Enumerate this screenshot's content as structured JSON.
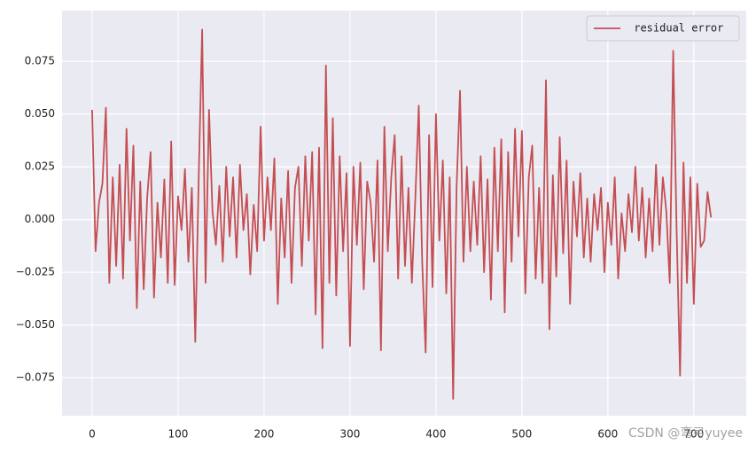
{
  "chart_data": {
    "type": "line",
    "x": [
      0,
      4,
      8,
      12,
      16,
      20,
      24,
      28,
      32,
      36,
      40,
      44,
      48,
      52,
      56,
      60,
      64,
      68,
      72,
      76,
      80,
      84,
      88,
      92,
      96,
      100,
      104,
      108,
      112,
      116,
      120,
      124,
      128,
      132,
      136,
      140,
      144,
      148,
      152,
      156,
      160,
      164,
      168,
      172,
      176,
      180,
      184,
      188,
      192,
      196,
      200,
      204,
      208,
      212,
      216,
      220,
      224,
      228,
      232,
      236,
      240,
      244,
      248,
      252,
      256,
      260,
      264,
      268,
      272,
      276,
      280,
      284,
      288,
      292,
      296,
      300,
      304,
      308,
      312,
      316,
      320,
      324,
      328,
      332,
      336,
      340,
      344,
      348,
      352,
      356,
      360,
      364,
      368,
      372,
      376,
      380,
      384,
      388,
      392,
      396,
      400,
      404,
      408,
      412,
      416,
      420,
      424,
      428,
      432,
      436,
      440,
      444,
      448,
      452,
      456,
      460,
      464,
      468,
      472,
      476,
      480,
      484,
      488,
      492,
      496,
      500,
      504,
      508,
      512,
      516,
      520,
      524,
      528,
      532,
      536,
      540,
      544,
      548,
      552,
      556,
      560,
      564,
      568,
      572,
      576,
      580,
      584,
      588,
      592,
      596,
      600,
      604,
      608,
      612,
      616,
      620,
      624,
      628,
      632,
      636,
      640,
      644,
      648,
      652,
      656,
      660,
      664,
      668,
      672,
      676,
      680,
      684,
      688,
      692,
      696,
      700,
      704,
      708,
      712,
      716,
      720
    ],
    "series": [
      {
        "name": " residual error",
        "color": "#c44e52",
        "values": [
          0.052,
          -0.015,
          0.008,
          0.017,
          0.053,
          -0.03,
          0.02,
          -0.022,
          0.026,
          -0.028,
          0.043,
          -0.01,
          0.035,
          -0.042,
          0.018,
          -0.033,
          0.01,
          0.032,
          -0.037,
          0.008,
          -0.018,
          0.019,
          -0.03,
          0.037,
          -0.031,
          0.011,
          -0.005,
          0.024,
          -0.02,
          0.015,
          -0.058,
          0.02,
          0.09,
          -0.03,
          0.052,
          0.004,
          -0.012,
          0.016,
          -0.02,
          0.025,
          -0.008,
          0.02,
          -0.018,
          0.026,
          -0.005,
          0.012,
          -0.026,
          0.007,
          -0.015,
          0.044,
          -0.01,
          0.02,
          -0.005,
          0.029,
          -0.04,
          0.01,
          -0.018,
          0.023,
          -0.03,
          0.015,
          0.025,
          -0.022,
          0.03,
          -0.01,
          0.032,
          -0.045,
          0.034,
          -0.061,
          0.073,
          -0.03,
          0.048,
          -0.036,
          0.03,
          -0.015,
          0.022,
          -0.06,
          0.025,
          -0.012,
          0.027,
          -0.033,
          0.018,
          0.008,
          -0.02,
          0.028,
          -0.062,
          0.044,
          -0.015,
          0.02,
          0.04,
          -0.028,
          0.03,
          -0.022,
          0.015,
          -0.03,
          0.01,
          0.054,
          -0.02,
          -0.063,
          0.04,
          -0.032,
          0.05,
          -0.01,
          0.028,
          -0.035,
          0.02,
          -0.085,
          0.015,
          0.061,
          -0.02,
          0.025,
          -0.015,
          0.018,
          -0.012,
          0.03,
          -0.025,
          0.019,
          -0.038,
          0.034,
          -0.015,
          0.038,
          -0.044,
          0.032,
          -0.02,
          0.043,
          -0.008,
          0.042,
          -0.035,
          0.02,
          0.035,
          -0.028,
          0.015,
          -0.03,
          0.066,
          -0.052,
          0.021,
          -0.027,
          0.039,
          -0.016,
          0.028,
          -0.04,
          0.018,
          -0.008,
          0.022,
          -0.018,
          0.01,
          -0.02,
          0.012,
          -0.005,
          0.015,
          -0.025,
          0.008,
          -0.012,
          0.02,
          -0.028,
          0.003,
          -0.015,
          0.012,
          -0.006,
          0.025,
          -0.01,
          0.015,
          -0.018,
          0.01,
          -0.015,
          0.026,
          -0.012,
          0.02,
          0.004,
          -0.03,
          0.08,
          -0.005,
          -0.074,
          0.027,
          -0.03,
          0.02,
          -0.04,
          0.017,
          -0.013,
          -0.01,
          0.013,
          0.001
        ]
      }
    ],
    "xlim": [
      -35,
      761
    ],
    "ylim": [
      -0.093,
      0.099
    ],
    "xticks": [
      0,
      100,
      200,
      300,
      400,
      500,
      600,
      700
    ],
    "yticks": [
      {
        "value": -0.075,
        "label": "−0.075"
      },
      {
        "value": -0.05,
        "label": "−0.050"
      },
      {
        "value": -0.025,
        "label": "−0.025"
      },
      {
        "value": 0,
        "label": "0.000"
      },
      0.025,
      {
        "value": 0.05,
        "label": "0.050"
      },
      0.075
    ],
    "grid": true,
    "legend": "upper right",
    "annotations": [
      "CSDN @弯弓yuyee"
    ]
  }
}
